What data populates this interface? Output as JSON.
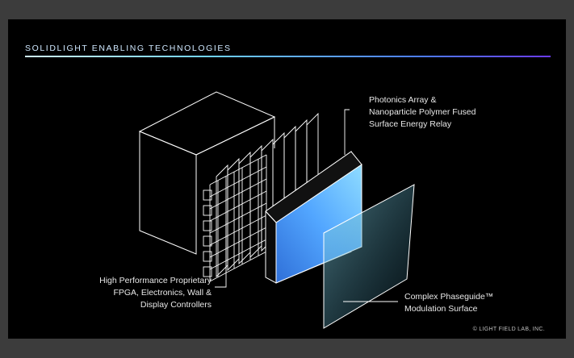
{
  "slide": {
    "title": "SOLIDLIGHT ENABLING TECHNOLOGIES",
    "copyright": "© LIGHT FIELD LAB, INC."
  },
  "labels": {
    "photonics": [
      "Photonics Array &",
      "Nanoparticle Polymer Fused",
      "Surface Energy Relay"
    ],
    "fpga": [
      "High Performance Proprietary",
      "FPGA, Electronics, Wall &",
      "Display Controllers"
    ],
    "phaseguide": [
      "Complex Phaseguide™",
      "Modulation Surface"
    ]
  },
  "colors": {
    "background": "#000000",
    "line_art": "#ffffff",
    "relay_gradient": [
      "#2f6fd8",
      "#52a6ff",
      "#8fdcff"
    ],
    "phaseguide_tint": "#8ad6e8",
    "title_rule": [
      "#cfefff",
      "#4c7dff",
      "#6b3bff"
    ]
  }
}
